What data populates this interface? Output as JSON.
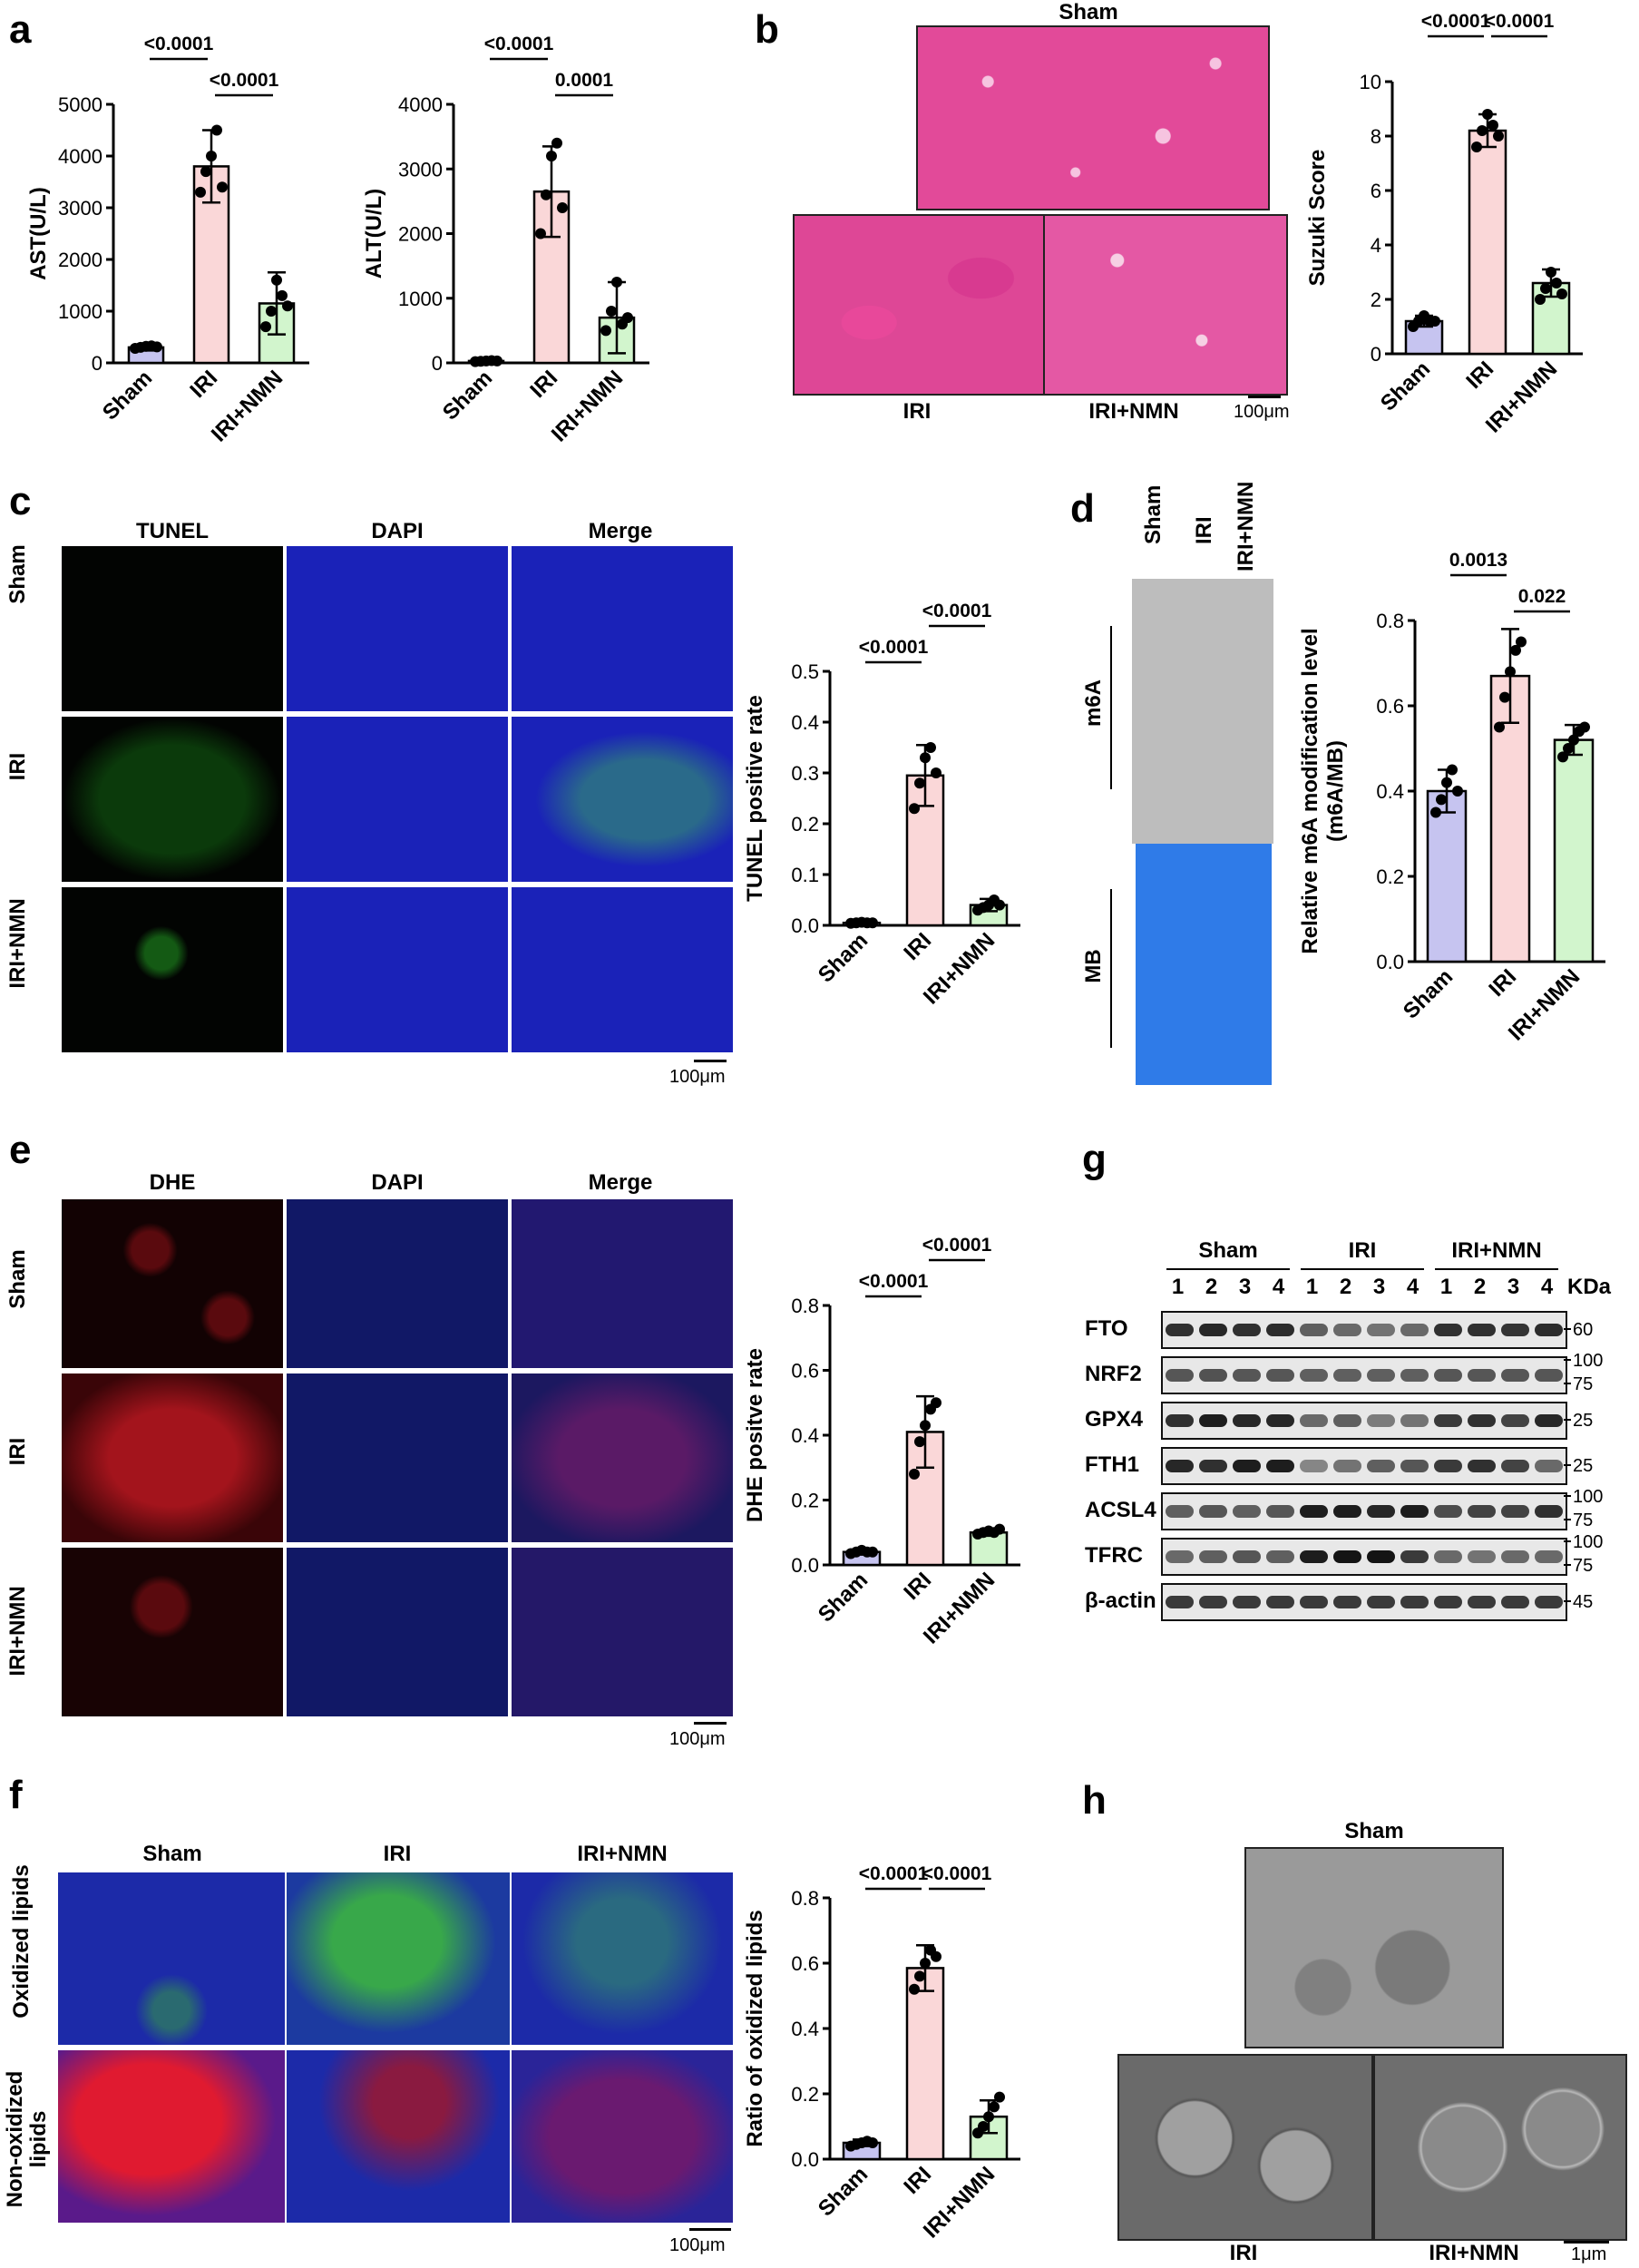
{
  "panels": {
    "a": "a",
    "b": "b",
    "c": "c",
    "d": "d",
    "e": "e",
    "f": "f",
    "g": "g",
    "h": "h"
  },
  "colors": {
    "sham": "#c6c4f0",
    "iri": "#fad7d8",
    "iri_nmn": "#d2f5cd",
    "he_pink": "#e24a99",
    "dapi_blue": "#1a22b8",
    "tunel_green": "#3ee03e",
    "dhe_red": "#e0202a",
    "membrane_blue": "#2f7be8",
    "em_gray": "#8a8a8a"
  },
  "chart_data": [
    {
      "id": "a-ast",
      "type": "bar",
      "categories": [
        "Sham",
        "IRI",
        "IRI+NMN"
      ],
      "values": [
        300,
        3800,
        1150
      ],
      "errors": [
        60,
        700,
        600
      ],
      "points": [
        [
          280,
          300,
          320,
          330,
          310
        ],
        [
          3300,
          3700,
          4000,
          4500,
          3400
        ],
        [
          700,
          1000,
          1600,
          1300,
          1100
        ]
      ],
      "ylabel": "AST(U/L)",
      "ylim": [
        0,
        5000
      ],
      "yticks": [
        0,
        1000,
        2000,
        3000,
        4000,
        5000
      ],
      "comparisons": [
        {
          "from": 0,
          "to": 1,
          "p": "<0.0001",
          "level": 1
        },
        {
          "from": 1,
          "to": 2,
          "p": "<0.0001",
          "level": 0
        }
      ]
    },
    {
      "id": "a-alt",
      "type": "bar",
      "categories": [
        "Sham",
        "IRI",
        "IRI+NMN"
      ],
      "values": [
        30,
        2650,
        700
      ],
      "errors": [
        10,
        700,
        550
      ],
      "points": [
        [
          20,
          25,
          30,
          35,
          30
        ],
        [
          2000,
          2600,
          3200,
          3400,
          2400
        ],
        [
          500,
          800,
          1250,
          600,
          700
        ]
      ],
      "ylabel": "ALT(U/L)",
      "ylim": [
        0,
        4000
      ],
      "yticks": [
        0,
        1000,
        2000,
        3000,
        4000
      ],
      "comparisons": [
        {
          "from": 0,
          "to": 1,
          "p": "<0.0001",
          "level": 1
        },
        {
          "from": 1,
          "to": 2,
          "p": "0.0001",
          "level": 0
        }
      ]
    },
    {
      "id": "b-suzuki",
      "type": "bar",
      "categories": [
        "Sham",
        "IRI",
        "IRI+NMN"
      ],
      "values": [
        1.2,
        8.2,
        2.6
      ],
      "errors": [
        0.2,
        0.6,
        0.5
      ],
      "points": [
        [
          1.0,
          1.2,
          1.4,
          1.2,
          1.2
        ],
        [
          7.6,
          8.2,
          8.8,
          8.4,
          8.0
        ],
        [
          2.0,
          2.4,
          3.0,
          2.6,
          2.2
        ]
      ],
      "ylabel": "Suzuki Score",
      "ylim": [
        0,
        10
      ],
      "yticks": [
        0,
        2,
        4,
        6,
        8,
        10
      ],
      "comparisons": [
        {
          "from": 0,
          "to": 1,
          "p": "<0.0001",
          "level": 1
        },
        {
          "from": 1,
          "to": 2,
          "p": "<0.0001",
          "level": 1
        }
      ]
    },
    {
      "id": "c-tunel",
      "type": "bar",
      "categories": [
        "Sham",
        "IRI",
        "IRI+NMN"
      ],
      "values": [
        0.005,
        0.295,
        0.04
      ],
      "errors": [
        0.003,
        0.06,
        0.012
      ],
      "points": [
        [
          0.004,
          0.005,
          0.006,
          0.005,
          0.005
        ],
        [
          0.23,
          0.28,
          0.33,
          0.35,
          0.3
        ],
        [
          0.03,
          0.035,
          0.04,
          0.05,
          0.04
        ]
      ],
      "ylabel": "TUNEL positive rate",
      "ylim": [
        0,
        0.5
      ],
      "yticks": [
        0.0,
        0.1,
        0.2,
        0.3,
        0.4,
        0.5
      ],
      "comparisons": [
        {
          "from": 0,
          "to": 1,
          "p": "<0.0001",
          "level": 0
        },
        {
          "from": 1,
          "to": 2,
          "p": "<0.0001",
          "level": 1
        }
      ]
    },
    {
      "id": "d-m6a",
      "type": "bar",
      "categories": [
        "Sham",
        "IRI",
        "IRI+NMN"
      ],
      "values": [
        0.4,
        0.67,
        0.52
      ],
      "errors": [
        0.05,
        0.11,
        0.035
      ],
      "points": [
        [
          0.35,
          0.38,
          0.42,
          0.45,
          0.4
        ],
        [
          0.55,
          0.62,
          0.68,
          0.73,
          0.75
        ],
        [
          0.48,
          0.5,
          0.52,
          0.54,
          0.55
        ]
      ],
      "ylabel": "Relative m6A modification level (m6A/MB)",
      "ylim": [
        0,
        0.8
      ],
      "yticks": [
        0.0,
        0.2,
        0.4,
        0.6,
        0.8
      ],
      "comparisons": [
        {
          "from": 0,
          "to": 1,
          "p": "0.0013",
          "level": 1
        },
        {
          "from": 1,
          "to": 2,
          "p": "0.022",
          "level": 0
        }
      ]
    },
    {
      "id": "e-dhe",
      "type": "bar",
      "categories": [
        "Sham",
        "IRI",
        "IRI+NMN"
      ],
      "values": [
        0.04,
        0.41,
        0.1
      ],
      "errors": [
        0.008,
        0.11,
        0.01
      ],
      "points": [
        [
          0.035,
          0.04,
          0.045,
          0.04,
          0.04
        ],
        [
          0.28,
          0.38,
          0.43,
          0.48,
          0.5
        ],
        [
          0.095,
          0.1,
          0.105,
          0.1,
          0.11
        ]
      ],
      "ylabel": "DHE positve rate",
      "ylim": [
        0,
        0.8
      ],
      "yticks": [
        0.0,
        0.2,
        0.4,
        0.6,
        0.8
      ],
      "comparisons": [
        {
          "from": 0,
          "to": 1,
          "p": "<0.0001",
          "level": 0
        },
        {
          "from": 1,
          "to": 2,
          "p": "<0.0001",
          "level": 1
        }
      ]
    },
    {
      "id": "f-oxidized",
      "type": "bar",
      "categories": [
        "Sham",
        "IRI",
        "IRI+NMN"
      ],
      "values": [
        0.05,
        0.585,
        0.13
      ],
      "errors": [
        0.01,
        0.07,
        0.05
      ],
      "points": [
        [
          0.04,
          0.045,
          0.05,
          0.055,
          0.05
        ],
        [
          0.52,
          0.56,
          0.6,
          0.64,
          0.62
        ],
        [
          0.08,
          0.1,
          0.13,
          0.16,
          0.19
        ]
      ],
      "ylabel": "Ratio of oxidized lipids",
      "ylim": [
        0,
        0.8
      ],
      "yticks": [
        0.0,
        0.2,
        0.4,
        0.6,
        0.8
      ],
      "comparisons": [
        {
          "from": 0,
          "to": 1,
          "p": "<0.0001",
          "level": 0
        },
        {
          "from": 1,
          "to": 2,
          "p": "<0.0001",
          "level": 0
        }
      ]
    }
  ],
  "panel_b": {
    "titles": {
      "sham": "Sham",
      "iri": "IRI",
      "iri_nmn": "IRI+NMN"
    },
    "scale": "100μm"
  },
  "panel_c": {
    "columns": [
      "TUNEL",
      "DAPI",
      "Merge"
    ],
    "rows": [
      "Sham",
      "IRI",
      "IRI+NMN"
    ],
    "scale": "100μm"
  },
  "panel_d": {
    "lanes": [
      "Sham",
      "IRI",
      "IRI+NMN"
    ],
    "blots": [
      "m6A",
      "MB"
    ]
  },
  "panel_e": {
    "columns": [
      "DHE",
      "DAPI",
      "Merge"
    ],
    "rows": [
      "Sham",
      "IRI",
      "IRI+NMN"
    ],
    "scale": "100μm"
  },
  "panel_f": {
    "columns": [
      "Sham",
      "IRI",
      "IRI+NMN"
    ],
    "rows": [
      "Oxidized lipids",
      "Non-oxidized lipids"
    ],
    "scale": "100μm"
  },
  "panel_g": {
    "groups": [
      "Sham",
      "IRI",
      "IRI+NMN"
    ],
    "lanes": [
      "1",
      "2",
      "3",
      "4",
      "1",
      "2",
      "3",
      "4",
      "1",
      "2",
      "3",
      "4"
    ],
    "kda_label": "KDa",
    "proteins": [
      {
        "name": "FTO",
        "markers": [
          "60"
        ],
        "intensity": [
          0.8,
          0.85,
          0.8,
          0.82,
          0.55,
          0.5,
          0.45,
          0.5,
          0.8,
          0.8,
          0.78,
          0.82
        ]
      },
      {
        "name": "NRF2",
        "markers": [
          "100",
          "75"
        ],
        "intensity": [
          0.6,
          0.62,
          0.6,
          0.6,
          0.55,
          0.55,
          0.55,
          0.55,
          0.6,
          0.6,
          0.6,
          0.6
        ]
      },
      {
        "name": "GPX4",
        "markers": [
          "25"
        ],
        "intensity": [
          0.8,
          0.9,
          0.85,
          0.85,
          0.5,
          0.55,
          0.4,
          0.45,
          0.75,
          0.8,
          0.7,
          0.85
        ]
      },
      {
        "name": "FTH1",
        "markers": [
          "25"
        ],
        "intensity": [
          0.85,
          0.8,
          0.9,
          0.9,
          0.35,
          0.45,
          0.55,
          0.6,
          0.75,
          0.8,
          0.7,
          0.5
        ]
      },
      {
        "name": "ACSL4",
        "markers": [
          "100",
          "75"
        ],
        "intensity": [
          0.55,
          0.6,
          0.55,
          0.6,
          0.9,
          0.9,
          0.85,
          0.9,
          0.65,
          0.7,
          0.7,
          0.8
        ]
      },
      {
        "name": "TFRC",
        "markers": [
          "100",
          "75"
        ],
        "intensity": [
          0.5,
          0.55,
          0.6,
          0.55,
          0.9,
          0.95,
          0.95,
          0.75,
          0.5,
          0.45,
          0.5,
          0.5
        ]
      },
      {
        "name": "β-actin",
        "markers": [
          "45"
        ],
        "intensity": [
          0.75,
          0.75,
          0.75,
          0.75,
          0.75,
          0.75,
          0.75,
          0.75,
          0.75,
          0.75,
          0.75,
          0.75
        ]
      }
    ]
  },
  "panel_h": {
    "titles": {
      "sham": "Sham",
      "iri": "IRI",
      "iri_nmn": "IRI+NMN"
    },
    "scale": "1μm"
  }
}
